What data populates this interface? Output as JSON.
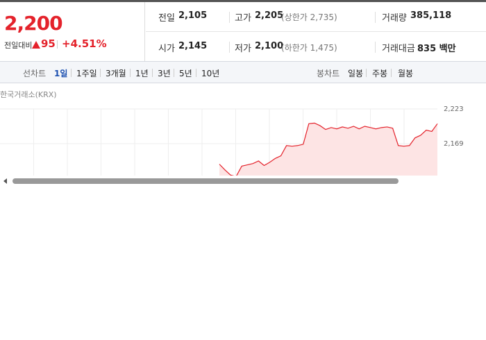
{
  "quote": {
    "price": "2,200",
    "change_label": "전일대비",
    "change": "95",
    "change_rate": "+4.51%"
  },
  "stats": [
    {
      "label": "전일",
      "value": "2,105"
    },
    {
      "label": "고가",
      "value": "2,205",
      "note": "(상한가 2,735)"
    },
    {
      "label": "거래량",
      "value": "385,118"
    },
    {
      "label": "시가",
      "value": "2,145"
    },
    {
      "label": "저가",
      "value": "2,100",
      "note": "(하한가 1,475)"
    },
    {
      "label": "거래대금",
      "value": "835 백만"
    }
  ],
  "tabs": {
    "line_label": "선차트",
    "line": [
      "1일",
      "1주일",
      "3개월",
      "1년",
      "3년",
      "5년",
      "10년"
    ],
    "candle_label": "봉차트",
    "candle": [
      "일봉",
      "주봉",
      "월봉"
    ]
  },
  "chart_data": {
    "type": "line",
    "source": "한국거래소(KRX)",
    "series": [
      {
        "color": "#e4222b",
        "values": [
          2137,
          2128,
          2120,
          2118,
          2134,
          2136,
          2138,
          2142,
          2135,
          2140,
          2146,
          2150,
          2166,
          2165,
          2166,
          2168,
          2200,
          2201,
          2197,
          2191,
          2194,
          2192,
          2195,
          2193,
          2196,
          2192,
          2196,
          2194,
          2192,
          2194,
          2195,
          2193,
          2166,
          2165,
          2166,
          2178,
          2182,
          2190,
          2188,
          2200
        ]
      }
    ],
    "ylim": [
      2115,
      2223
    ],
    "yticks": [
      {
        "value": 2223,
        "label": "2,223"
      },
      {
        "value": 2169,
        "label": "2,169"
      }
    ],
    "grid": true
  }
}
